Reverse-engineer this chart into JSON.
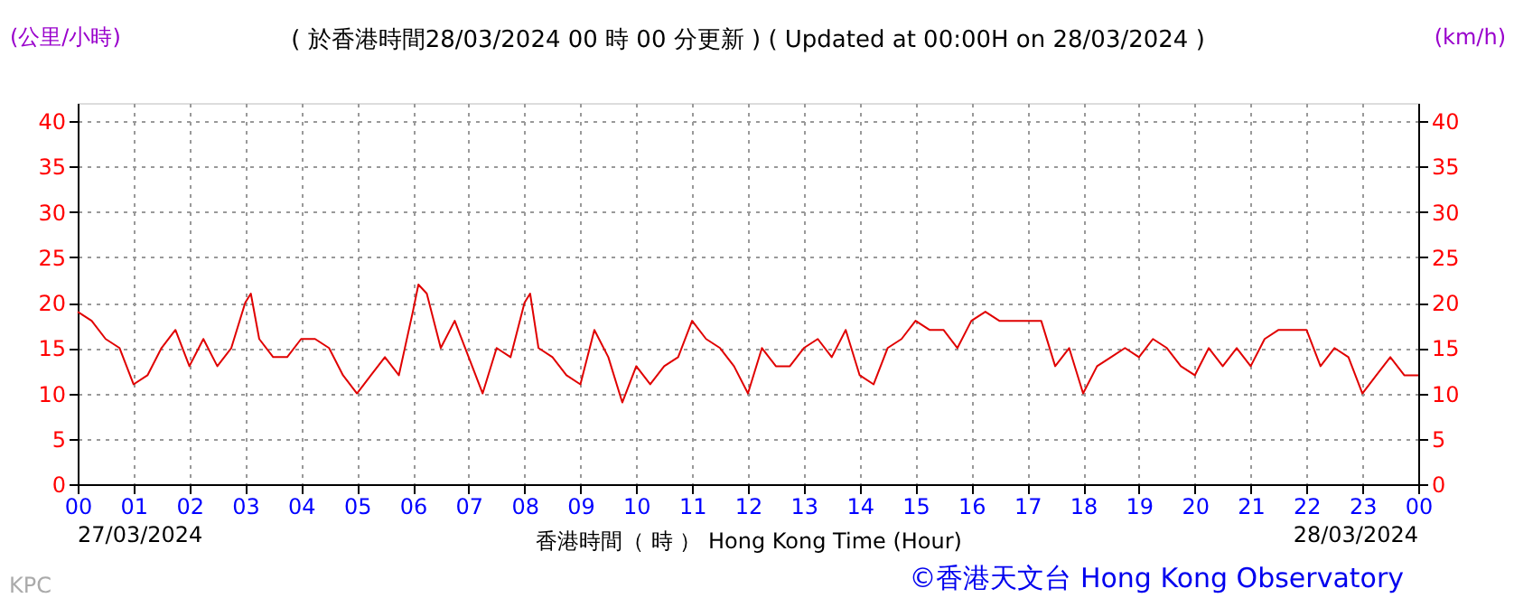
{
  "chart_data": {
    "type": "line",
    "title": "( 於香港時間28/03/2024 00 時 00 分更新 ) ( Updated at 00:00H on 28/03/2024 )",
    "xlabel": "香港時間（ 時 ） Hong Kong Time (Hour)",
    "ylabel": "(公里/小時)",
    "y2label": "(km/h)",
    "x": [
      0,
      0.25,
      0.5,
      0.75,
      1,
      1.25,
      1.5,
      1.75,
      2,
      2.25,
      2.5,
      2.75,
      3,
      3.1,
      3.25,
      3.5,
      3.75,
      4,
      4.25,
      4.5,
      4.75,
      5,
      5.25,
      5.5,
      5.75,
      6,
      6.1,
      6.25,
      6.5,
      6.75,
      7,
      7.25,
      7.5,
      7.75,
      8,
      8.1,
      8.25,
      8.5,
      8.75,
      9,
      9.25,
      9.5,
      9.75,
      10,
      10.25,
      10.5,
      10.75,
      11,
      11.25,
      11.5,
      11.75,
      12,
      12.25,
      12.5,
      12.75,
      13,
      13.25,
      13.5,
      13.75,
      14,
      14.25,
      14.5,
      14.75,
      15,
      15.25,
      15.5,
      15.75,
      16,
      16.25,
      16.5,
      16.75,
      17,
      17.25,
      17.5,
      17.75,
      18,
      18.25,
      18.5,
      18.75,
      19,
      19.25,
      19.5,
      19.75,
      20,
      20.25,
      20.5,
      20.75,
      21,
      21.25,
      21.5,
      21.75,
      22,
      22.25,
      22.5,
      22.75,
      23,
      23.25,
      23.5,
      23.75,
      24
    ],
    "series": [
      {
        "color": "#e00000",
        "values": [
          19,
          18,
          16,
          15,
          11,
          12,
          15,
          17,
          13,
          16,
          13,
          15,
          20,
          21,
          16,
          14,
          14,
          16,
          16,
          15,
          12,
          10,
          12,
          14,
          12,
          19,
          22,
          21,
          15,
          18,
          14,
          10,
          15,
          14,
          20,
          21,
          15,
          14,
          12,
          11,
          17,
          14,
          9,
          13,
          11,
          13,
          14,
          18,
          16,
          15,
          13,
          10,
          15,
          13,
          13,
          15,
          16,
          14,
          17,
          12,
          11,
          15,
          16,
          18,
          17,
          17,
          15,
          18,
          19,
          18,
          18,
          18,
          18,
          13,
          15,
          10,
          13,
          14,
          15,
          14,
          16,
          15,
          13,
          12,
          15,
          13,
          15,
          13,
          16,
          17,
          17,
          17,
          13,
          15,
          14,
          10,
          12,
          14,
          12,
          12
        ]
      }
    ],
    "xlim": [
      0,
      24
    ],
    "xticks": [
      {
        "value": 0,
        "label": "00"
      },
      {
        "value": 1,
        "label": "01"
      },
      {
        "value": 2,
        "label": "02"
      },
      {
        "value": 3,
        "label": "03"
      },
      {
        "value": 4,
        "label": "04"
      },
      {
        "value": 5,
        "label": "05"
      },
      {
        "value": 6,
        "label": "06"
      },
      {
        "value": 7,
        "label": "07"
      },
      {
        "value": 8,
        "label": "08"
      },
      {
        "value": 9,
        "label": "09"
      },
      {
        "value": 10,
        "label": "10"
      },
      {
        "value": 11,
        "label": "11"
      },
      {
        "value": 12,
        "label": "12"
      },
      {
        "value": 13,
        "label": "13"
      },
      {
        "value": 14,
        "label": "14"
      },
      {
        "value": 15,
        "label": "15"
      },
      {
        "value": 16,
        "label": "16"
      },
      {
        "value": 17,
        "label": "17"
      },
      {
        "value": 18,
        "label": "18"
      },
      {
        "value": 19,
        "label": "19"
      },
      {
        "value": 20,
        "label": "20"
      },
      {
        "value": 21,
        "label": "21"
      },
      {
        "value": 22,
        "label": "22"
      },
      {
        "value": 23,
        "label": "23"
      },
      {
        "value": 24,
        "label": "00"
      }
    ],
    "ylim": [
      0,
      42
    ],
    "yticks": [
      0,
      5,
      10,
      15,
      20,
      25,
      30,
      35,
      40
    ],
    "y2lim": [
      0,
      42
    ],
    "y2ticks": [
      0,
      5,
      10,
      15,
      20,
      25,
      30,
      35,
      40
    ],
    "grid": true,
    "marker": "none",
    "line_style": "solid",
    "annotations": [
      "27/03/2024",
      "28/03/2024",
      "KPC",
      "©香港天文台 Hong Kong Observatory"
    ]
  }
}
